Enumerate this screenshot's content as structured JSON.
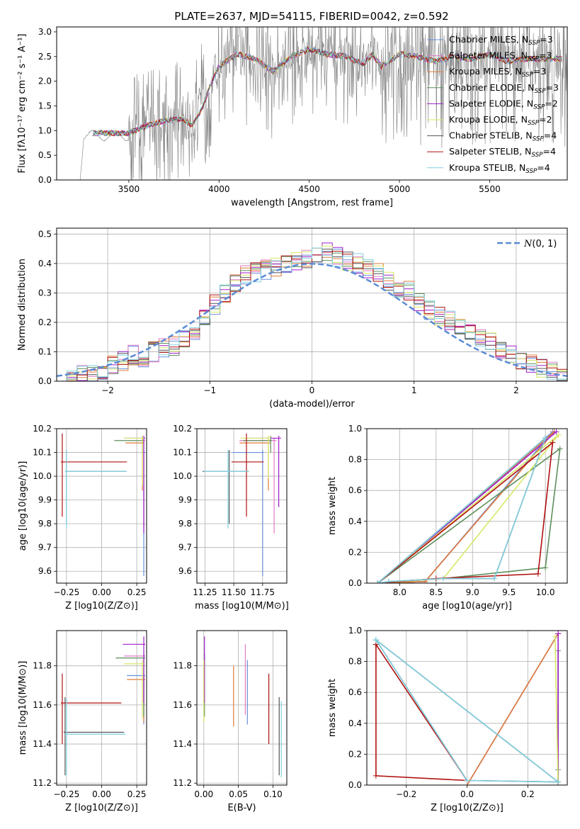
{
  "title": "PLATE=2637, MJD=54115, FIBERID=0042, z=0.592",
  "colors": {
    "Chabrier MILES": "#6a8fdc",
    "Salpeter MILES": "#e07cc8",
    "Kroupa MILES": "#de7e3c",
    "Chabrier ELODIE": "#5e8f5c",
    "Salpeter ELODIE": "#a020c8",
    "Kroupa ELODIE": "#d8e866",
    "Chabrier STELIB": "#555555",
    "Salpeter STELIB": "#b01010",
    "Kroupa STELIB": "#80d0e0",
    "data": "#808080",
    "normal": "#5b8bd6"
  },
  "chart_data": [
    {
      "id": "spectrum",
      "type": "line",
      "xlabel": "wavelength [Angstrom, rest frame]",
      "ylabel": "Flux [fλ10⁻¹⁷ erg cm⁻² s⁻¹ A⁻¹]",
      "xlim": [
        3100,
        5930
      ],
      "ylim": [
        0,
        3.1
      ],
      "xticks": [
        3500,
        4000,
        4500,
        5000,
        5500
      ],
      "yticks": [
        0.0,
        0.5,
        1.0,
        1.5,
        2.0,
        2.5,
        3.0
      ],
      "grid": false,
      "legend_position": "top-right",
      "data_start": 3230,
      "data_end": 5930,
      "model_x": [
        3500,
        3600,
        3700,
        3800,
        3850,
        3900,
        3950,
        4000,
        4100,
        4200,
        4300,
        4400,
        4500,
        4600,
        4700,
        4800,
        4850,
        4900,
        5000,
        5100,
        5200,
        5300,
        5400,
        5500,
        5600,
        5700
      ],
      "model_y": [
        0.95,
        1.1,
        1.2,
        1.25,
        1.1,
        1.4,
        1.9,
        2.3,
        2.55,
        2.45,
        2.2,
        2.5,
        2.65,
        2.55,
        2.5,
        2.35,
        2.55,
        2.3,
        2.55,
        2.5,
        2.4,
        2.5,
        2.45,
        2.55,
        2.4,
        2.45
      ],
      "legend": [
        "Chabrier MILES, N_SSP=3",
        "Salpeter MILES, N_SSP=3",
        "Kroupa MILES, N_SSP=3",
        "Chabrier ELODIE, N_SSP=3",
        "Salpeter ELODIE, N_SSP=2",
        "Kroupa ELODIE, N_SSP=2",
        "Chabrier STELIB, N_SSP=4",
        "Salpeter STELIB, N_SSP=4",
        "Kroupa STELIB, N_SSP=4"
      ]
    },
    {
      "id": "residuals",
      "type": "histogram",
      "xlabel": "(data-model)/error",
      "ylabel": "Normed distribution",
      "xlim": [
        -2.5,
        2.5
      ],
      "ylim": [
        0,
        0.52
      ],
      "xticks": [
        -2,
        -1,
        0,
        1,
        2
      ],
      "yticks": [
        0.0,
        0.1,
        0.2,
        0.3,
        0.4,
        0.5
      ],
      "grid": true,
      "legend": [
        "N(0,1)"
      ],
      "legend_position": "top-right",
      "bin_start": -2.5,
      "bin_width": 0.1,
      "base_values": [
        0.01,
        0.01,
        0.02,
        0.02,
        0.04,
        0.06,
        0.07,
        0.09,
        0.08,
        0.1,
        0.11,
        0.12,
        0.15,
        0.17,
        0.22,
        0.26,
        0.3,
        0.33,
        0.36,
        0.37,
        0.38,
        0.39,
        0.4,
        0.41,
        0.42,
        0.43,
        0.44,
        0.42,
        0.41,
        0.4,
        0.38,
        0.37,
        0.34,
        0.32,
        0.31,
        0.27,
        0.24,
        0.22,
        0.21,
        0.18,
        0.16,
        0.15,
        0.13,
        0.1,
        0.09,
        0.07,
        0.06,
        0.04,
        0.03,
        0.02
      ],
      "curve": {
        "name": "N(0,1)",
        "mu": 0,
        "sigma": 1
      }
    },
    {
      "id": "age-vs-Z",
      "type": "errorbar",
      "xlabel": "Z [log10(Z/Z⊙)]",
      "ylabel": "age  [log10(age/yr)]",
      "xlim": [
        -0.32,
        0.32
      ],
      "ylim": [
        9.55,
        10.2
      ],
      "xticks": [
        -0.25,
        0.0,
        0.25
      ],
      "yticks": [
        9.6,
        9.7,
        9.8,
        9.9,
        10.0,
        10.1,
        10.2
      ],
      "grid": true,
      "points": [
        {
          "model": "Chabrier MILES",
          "x": 0.3,
          "y": 10.1,
          "xerr": [
            0.01,
            0.01
          ],
          "yerr": [
            0.52,
            0.01
          ]
        },
        {
          "model": "Salpeter MILES",
          "x": 0.3,
          "y": 10.15,
          "xerr": [
            0.01,
            0.01
          ],
          "yerr": [
            0.36,
            0.01
          ]
        },
        {
          "model": "Kroupa MILES",
          "x": 0.29,
          "y": 10.14,
          "xerr": [
            0.12,
            0.01
          ],
          "yerr": [
            0.2,
            0.02
          ]
        },
        {
          "model": "Chabrier ELODIE",
          "x": 0.29,
          "y": 10.15,
          "xerr": [
            0.2,
            0.01
          ],
          "yerr": [
            0.05,
            0.02
          ]
        },
        {
          "model": "Salpeter ELODIE",
          "x": 0.3,
          "y": 10.16,
          "xerr": [
            0.14,
            0.01
          ],
          "yerr": [
            0.4,
            0.01
          ]
        },
        {
          "model": "Kroupa ELODIE",
          "x": 0.29,
          "y": 10.16,
          "xerr": [
            0.13,
            0.01
          ],
          "yerr": [
            0.2,
            0.01
          ]
        },
        {
          "model": "Chabrier STELIB",
          "x": -0.25,
          "y": 10.02,
          "xerr": [
            0.01,
            0.42
          ],
          "yerr": [
            0.22,
            0.09
          ]
        },
        {
          "model": "Salpeter STELIB",
          "x": -0.28,
          "y": 10.06,
          "xerr": [
            0.01,
            0.46
          ],
          "yerr": [
            0.23,
            0.12
          ]
        },
        {
          "model": "Kroupa STELIB",
          "x": -0.25,
          "y": 10.02,
          "xerr": [
            0.01,
            0.43
          ],
          "yerr": [
            0.24,
            0.09
          ]
        }
      ]
    },
    {
      "id": "age-vs-mass",
      "type": "errorbar",
      "xlabel": "mass [log10(M/M⊙)]",
      "ylabel": "",
      "xlim": [
        11.18,
        11.96
      ],
      "ylim": [
        9.55,
        10.2
      ],
      "xticks": [
        11.25,
        11.5,
        11.75
      ],
      "yticks": [
        9.6,
        9.7,
        9.8,
        9.9,
        10.0,
        10.1,
        10.2
      ],
      "grid": true,
      "points": [
        {
          "model": "Chabrier MILES",
          "x": 11.75,
          "y": 10.1,
          "xerr": [
            0.26,
            0.01
          ],
          "yerr": [
            0.52,
            0.01
          ]
        },
        {
          "model": "Salpeter MILES",
          "x": 11.85,
          "y": 10.15,
          "xerr": [
            0.3,
            0.02
          ],
          "yerr": [
            0.39,
            0.01
          ]
        },
        {
          "model": "Kroupa MILES",
          "x": 11.8,
          "y": 10.14,
          "xerr": [
            0.25,
            0.02
          ],
          "yerr": [
            0.2,
            0.02
          ]
        },
        {
          "model": "Chabrier ELODIE",
          "x": 11.82,
          "y": 10.15,
          "xerr": [
            0.24,
            0.01
          ],
          "yerr": [
            0.05,
            0.02
          ]
        },
        {
          "model": "Salpeter ELODIE",
          "x": 11.89,
          "y": 10.16,
          "xerr": [
            0.26,
            0.02
          ],
          "yerr": [
            0.29,
            0.01
          ]
        },
        {
          "model": "Kroupa ELODIE",
          "x": 11.8,
          "y": 10.16,
          "xerr": [
            0.24,
            0.02
          ],
          "yerr": [
            0.17,
            0.01
          ]
        },
        {
          "model": "Chabrier STELIB",
          "x": 11.46,
          "y": 10.02,
          "xerr": [
            0.23,
            0.17
          ],
          "yerr": [
            0.22,
            0.09
          ]
        },
        {
          "model": "Salpeter STELIB",
          "x": 11.61,
          "y": 10.06,
          "xerr": [
            0.13,
            0.15
          ],
          "yerr": [
            0.23,
            0.12
          ]
        },
        {
          "model": "Kroupa STELIB",
          "x": 11.45,
          "y": 10.02,
          "xerr": [
            0.21,
            0.18
          ],
          "yerr": [
            0.24,
            0.09
          ]
        }
      ]
    },
    {
      "id": "weight-vs-age",
      "type": "line",
      "xlabel": "age  [log10(age/yr)]",
      "ylabel": "mass weight",
      "xlim": [
        7.55,
        10.3
      ],
      "ylim": [
        0,
        1.0
      ],
      "xticks": [
        8.0,
        8.5,
        9.0,
        9.5,
        10.0
      ],
      "yticks": [
        0.0,
        0.2,
        0.4,
        0.6,
        0.8,
        1.0
      ],
      "grid": true,
      "series": [
        {
          "name": "Chabrier MILES",
          "x": [
            7.7,
            8.35,
            10.1,
            7.7
          ],
          "y": [
            0.0,
            0.01,
            0.98,
            0.0
          ]
        },
        {
          "name": "Salpeter MILES",
          "x": [
            7.7,
            8.35,
            10.12,
            7.7
          ],
          "y": [
            0.0,
            0.01,
            0.98,
            0.0
          ]
        },
        {
          "name": "Kroupa MILES",
          "x": [
            7.7,
            8.35,
            10.12,
            7.7
          ],
          "y": [
            0.0,
            0.01,
            0.98,
            0.0
          ]
        },
        {
          "name": "Chabrier ELODIE",
          "x": [
            7.7,
            8.6,
            10.0,
            10.2,
            7.7
          ],
          "y": [
            0.0,
            0.03,
            0.1,
            0.87,
            0.0
          ]
        },
        {
          "name": "Salpeter ELODIE",
          "x": [
            7.7,
            10.15,
            7.7
          ],
          "y": [
            0.0,
            0.98,
            0.0
          ]
        },
        {
          "name": "Kroupa ELODIE",
          "x": [
            7.7,
            8.6,
            10.18,
            7.7
          ],
          "y": [
            0.0,
            0.03,
            0.96,
            0.0
          ]
        },
        {
          "name": "Chabrier STELIB",
          "x": [
            7.7,
            7.85,
            8.6,
            9.3,
            10.0,
            7.7
          ],
          "y": [
            0.0,
            0.01,
            0.03,
            0.03,
            0.94,
            0.0
          ]
        },
        {
          "name": "Salpeter STELIB",
          "x": [
            7.7,
            8.5,
            9.9,
            10.1,
            7.7
          ],
          "y": [
            0.0,
            0.03,
            0.06,
            0.91,
            0.0
          ]
        },
        {
          "name": "Kroupa STELIB",
          "x": [
            7.7,
            7.85,
            8.6,
            9.3,
            10.0,
            7.7
          ],
          "y": [
            0.0,
            0.01,
            0.03,
            0.03,
            0.94,
            0.0
          ]
        }
      ]
    },
    {
      "id": "mass-vs-Z",
      "type": "errorbar",
      "xlabel": "Z [log10(Z/Z⊙)]",
      "ylabel": "mass [log10(M/M⊙)]",
      "xlim": [
        -0.32,
        0.32
      ],
      "ylim": [
        11.19,
        11.98
      ],
      "xticks": [
        -0.25,
        0.0,
        0.25
      ],
      "yticks": [
        11.2,
        11.4,
        11.6,
        11.8
      ],
      "grid": true,
      "points": [
        {
          "model": "Chabrier MILES",
          "x": 0.3,
          "y": 11.75,
          "xerr": [
            0.12,
            0.01
          ],
          "yerr": [
            0.25,
            0.01
          ]
        },
        {
          "model": "Salpeter MILES",
          "x": 0.3,
          "y": 11.85,
          "xerr": [
            0.14,
            0.01
          ],
          "yerr": [
            0.3,
            0.02
          ]
        },
        {
          "model": "Kroupa MILES",
          "x": 0.3,
          "y": 11.73,
          "xerr": [
            0.12,
            0.01
          ],
          "yerr": [
            0.22,
            0.02
          ]
        },
        {
          "model": "Chabrier ELODIE",
          "x": 0.3,
          "y": 11.84,
          "xerr": [
            0.2,
            0.01
          ],
          "yerr": [
            0.3,
            0.02
          ]
        },
        {
          "model": "Salpeter ELODIE",
          "x": 0.3,
          "y": 11.91,
          "xerr": [
            0.15,
            0.01
          ],
          "yerr": [
            0.3,
            0.04
          ]
        },
        {
          "model": "Kroupa ELODIE",
          "x": 0.29,
          "y": 11.81,
          "xerr": [
            0.13,
            0.01
          ],
          "yerr": [
            0.28,
            0.02
          ]
        },
        {
          "model": "Chabrier STELIB",
          "x": -0.26,
          "y": 11.46,
          "xerr": [
            0.01,
            0.42
          ],
          "yerr": [
            0.22,
            0.18
          ]
        },
        {
          "model": "Salpeter STELIB",
          "x": -0.28,
          "y": 11.61,
          "xerr": [
            0.01,
            0.42
          ],
          "yerr": [
            0.21,
            0.15
          ]
        },
        {
          "model": "Kroupa STELIB",
          "x": -0.25,
          "y": 11.45,
          "xerr": [
            0.01,
            0.42
          ],
          "yerr": [
            0.21,
            0.18
          ]
        }
      ]
    },
    {
      "id": "mass-vs-ebv",
      "type": "errorbar",
      "xlabel": "E(B-V)",
      "ylabel": "",
      "xlim": [
        -0.01,
        0.12
      ],
      "ylim": [
        11.19,
        11.98
      ],
      "xticks": [
        0.0,
        0.05,
        0.1
      ],
      "yticks": [
        11.2,
        11.4,
        11.6,
        11.8
      ],
      "grid": true,
      "points": [
        {
          "model": "Chabrier MILES",
          "x": 0.063,
          "y": 11.75,
          "xerr": [
            0,
            0
          ],
          "yerr": [
            0.25,
            0.08
          ]
        },
        {
          "model": "Salpeter MILES",
          "x": 0.06,
          "y": 11.85,
          "xerr": [
            0,
            0
          ],
          "yerr": [
            0.3,
            0.06
          ]
        },
        {
          "model": "Kroupa MILES",
          "x": 0.043,
          "y": 11.73,
          "xerr": [
            0,
            0
          ],
          "yerr": [
            0.24,
            0.07
          ]
        },
        {
          "model": "Chabrier ELODIE",
          "x": 0.001,
          "y": 11.84,
          "xerr": [
            0,
            0
          ],
          "yerr": [
            0.3,
            0.02
          ]
        },
        {
          "model": "Salpeter ELODIE",
          "x": 0.001,
          "y": 11.91,
          "xerr": [
            0,
            0
          ],
          "yerr": [
            0.3,
            0.04
          ]
        },
        {
          "model": "Kroupa ELODIE",
          "x": 0.0,
          "y": 11.81,
          "xerr": [
            0,
            0
          ],
          "yerr": [
            0.3,
            0.02
          ]
        },
        {
          "model": "Chabrier STELIB",
          "x": 0.109,
          "y": 11.46,
          "xerr": [
            0,
            0
          ],
          "yerr": [
            0.22,
            0.18
          ]
        },
        {
          "model": "Salpeter STELIB",
          "x": 0.094,
          "y": 11.61,
          "xerr": [
            0,
            0
          ],
          "yerr": [
            0.21,
            0.15
          ]
        },
        {
          "model": "Kroupa STELIB",
          "x": 0.112,
          "y": 11.45,
          "xerr": [
            0,
            0
          ],
          "yerr": [
            0.22,
            0.17
          ]
        }
      ]
    },
    {
      "id": "weight-vs-Z",
      "type": "line",
      "xlabel": "Z [log10(Z/Z⊙)]",
      "ylabel": "mass weight",
      "xlim": [
        -0.33,
        0.33
      ],
      "ylim": [
        0,
        1.0
      ],
      "xticks": [
        -0.2,
        0.0,
        0.2
      ],
      "yticks": [
        0.0,
        0.2,
        0.4,
        0.6,
        0.8,
        1.0
      ],
      "grid": true,
      "series": [
        {
          "name": "Chabrier MILES",
          "x": [
            0.0,
            0.3,
            0.0
          ],
          "y": [
            0.0,
            0.98,
            0.0
          ]
        },
        {
          "name": "Salpeter MILES",
          "x": [
            0.0,
            0.3,
            0.0
          ],
          "y": [
            0.0,
            0.98,
            0.0
          ]
        },
        {
          "name": "Kroupa MILES",
          "x": [
            0.0,
            0.3,
            0.0
          ],
          "y": [
            0.0,
            0.98,
            0.0
          ]
        },
        {
          "name": "Chabrier ELODIE",
          "x": [
            0.3,
            0.3,
            0.3,
            0.3
          ],
          "y": [
            0.0,
            0.1,
            0.87,
            0.0
          ]
        },
        {
          "name": "Salpeter ELODIE",
          "x": [
            0.3,
            0.3,
            0.3
          ],
          "y": [
            0.0,
            0.98,
            0.0
          ]
        },
        {
          "name": "Kroupa ELODIE",
          "x": [
            0.3,
            0.29,
            0.3
          ],
          "y": [
            0.0,
            0.96,
            0.0
          ]
        },
        {
          "name": "Chabrier STELIB",
          "x": [
            -0.3,
            0.0,
            0.3,
            -0.3
          ],
          "y": [
            0.94,
            0.03,
            0.02,
            0.94
          ]
        },
        {
          "name": "Salpeter STELIB",
          "x": [
            -0.3,
            -0.3,
            0.0,
            -0.3
          ],
          "y": [
            0.91,
            0.06,
            0.03,
            0.91
          ]
        },
        {
          "name": "Kroupa STELIB",
          "x": [
            -0.3,
            0.0,
            0.3,
            -0.3
          ],
          "y": [
            0.94,
            0.03,
            0.02,
            0.94
          ]
        }
      ]
    }
  ]
}
